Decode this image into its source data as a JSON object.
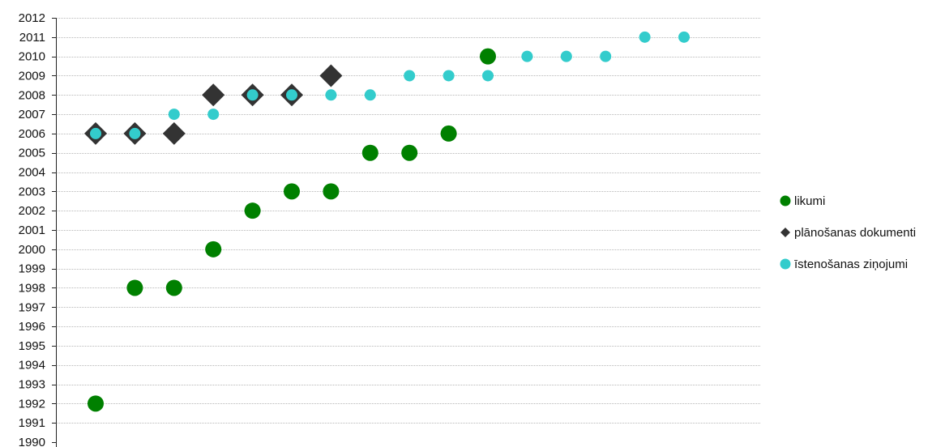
{
  "chart_data": {
    "type": "scatter",
    "title": "",
    "xlabel": "",
    "ylabel": "",
    "ylim": [
      1990,
      2012
    ],
    "y_ticks": [
      1990,
      1991,
      1992,
      1993,
      1994,
      1995,
      1996,
      1997,
      1998,
      1999,
      2000,
      2001,
      2002,
      2003,
      2004,
      2005,
      2006,
      2007,
      2008,
      2009,
      2010,
      2011,
      2012
    ],
    "x_slots": 17,
    "grid": true,
    "legend_position": "right",
    "series": [
      {
        "name": "likumi",
        "marker": "circle",
        "color": "#008000",
        "points": [
          {
            "x": 1,
            "y": 1992
          },
          {
            "x": 2,
            "y": 1998
          },
          {
            "x": 3,
            "y": 1998
          },
          {
            "x": 4,
            "y": 2000
          },
          {
            "x": 5,
            "y": 2002
          },
          {
            "x": 6,
            "y": 2003
          },
          {
            "x": 7,
            "y": 2003
          },
          {
            "x": 8,
            "y": 2005
          },
          {
            "x": 9,
            "y": 2005
          },
          {
            "x": 10,
            "y": 2006
          },
          {
            "x": 11,
            "y": 2010
          }
        ]
      },
      {
        "name": "plānošanas dokumenti",
        "marker": "diamond",
        "color": "#333333",
        "points": [
          {
            "x": 1,
            "y": 2006
          },
          {
            "x": 2,
            "y": 2006
          },
          {
            "x": 3,
            "y": 2006
          },
          {
            "x": 4,
            "y": 2008
          },
          {
            "x": 5,
            "y": 2008
          },
          {
            "x": 6,
            "y": 2008
          },
          {
            "x": 7,
            "y": 2009
          }
        ]
      },
      {
        "name": "īstenošanas ziņojumi",
        "marker": "circle-small",
        "color": "#33CCCC",
        "points": [
          {
            "x": 1,
            "y": 2006
          },
          {
            "x": 2,
            "y": 2006
          },
          {
            "x": 3,
            "y": 2007
          },
          {
            "x": 4,
            "y": 2007
          },
          {
            "x": 5,
            "y": 2008
          },
          {
            "x": 6,
            "y": 2008
          },
          {
            "x": 7,
            "y": 2008
          },
          {
            "x": 8,
            "y": 2008
          },
          {
            "x": 9,
            "y": 2009
          },
          {
            "x": 10,
            "y": 2009
          },
          {
            "x": 11,
            "y": 2009
          },
          {
            "x": 12,
            "y": 2010
          },
          {
            "x": 13,
            "y": 2010
          },
          {
            "x": 14,
            "y": 2010
          },
          {
            "x": 15,
            "y": 2011
          },
          {
            "x": 16,
            "y": 2011
          }
        ]
      }
    ]
  }
}
